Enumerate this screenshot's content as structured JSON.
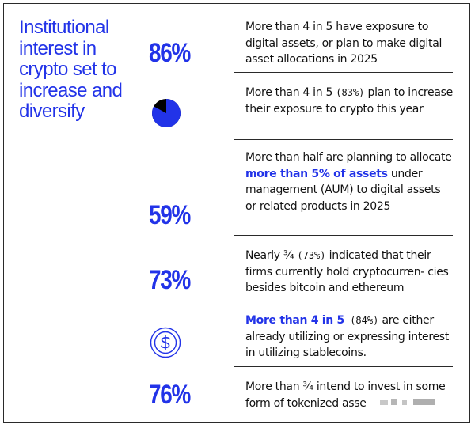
{
  "headline": "Institutional interest in crypto set to increase and diversify",
  "colors": {
    "accent": "#2233e8",
    "text": "#111111",
    "divider": "#2a2a2a",
    "border": "#2a2a2a",
    "background": "#ffffff"
  },
  "rows": [
    {
      "stat": "86%",
      "text": "More than 4 in 5 have exposure to digital assets, or plan to make digital asset allocations in 2025"
    },
    {
      "icon": "pie-chart-icon",
      "pie_fraction": 0.83,
      "text_a": "More than 4 in 5 ",
      "text_paren": "(83%)",
      "text_b": " plan to increase their exposure to crypto this year"
    },
    {
      "stat": "59%",
      "text_a": "More than half  are planning to allocate ",
      "text_highlight": "more than 5% of assets",
      "text_b": " under management (AUM) to digital assets or related products in 2025"
    },
    {
      "stat": "73%",
      "text_a": "Nearly ¾ ",
      "text_paren": "(73%)",
      "text_b": " indicated that their firms currently hold cryptocurren- cies besides bitcoin and ethereum"
    },
    {
      "icon": "dollar-coin-icon",
      "text_highlight": "More than 4 in 5",
      "text_paren": " (84%)",
      "text_b": " are either already utilizing or expressing interest in utilizing stablecoins."
    },
    {
      "stat": "76%",
      "text": "More than ¾ intend to invest in some form of tokenized asse"
    }
  ]
}
